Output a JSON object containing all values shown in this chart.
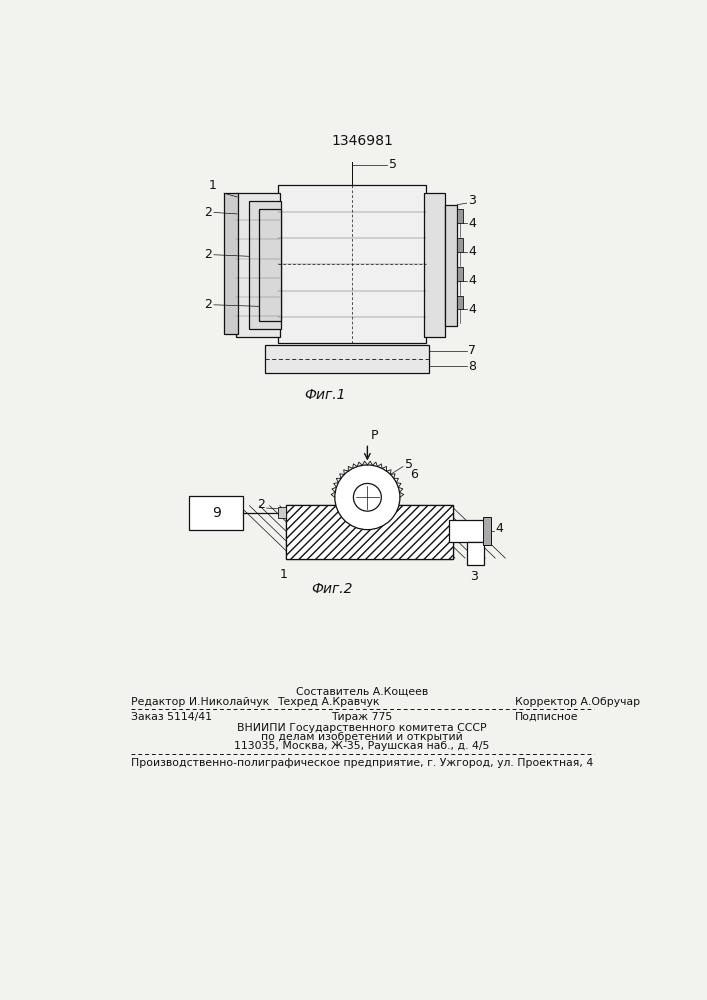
{
  "patent_number": "1346981",
  "background_color": "#f2f2ee",
  "fig1_caption": "Фиг.1",
  "fig2_caption": "Фиг.2",
  "footer": {
    "col1_row1": "",
    "col2_row1": "Составитель А.Кощеев",
    "col3_row1": "",
    "col1_row2": "Редактор И.Николайчук",
    "col2_row2": "Техред А.Кравчук",
    "col3_row2": "Корректор А.Обручар",
    "col1_row3": "Заказ 5114/41",
    "col2_row3": "Тираж 775",
    "col3_row3": "Подписное",
    "line4": "ВНИИПИ Государственного комитета СССР",
    "line5": "по делам изобретений и открытий",
    "line6": "113035, Москва, Ж-35, Раушская наб., д. 4/5",
    "line7": "Производственно-полиграфическое предприятие, г. Ужгород, ул. Проектная, 4"
  }
}
